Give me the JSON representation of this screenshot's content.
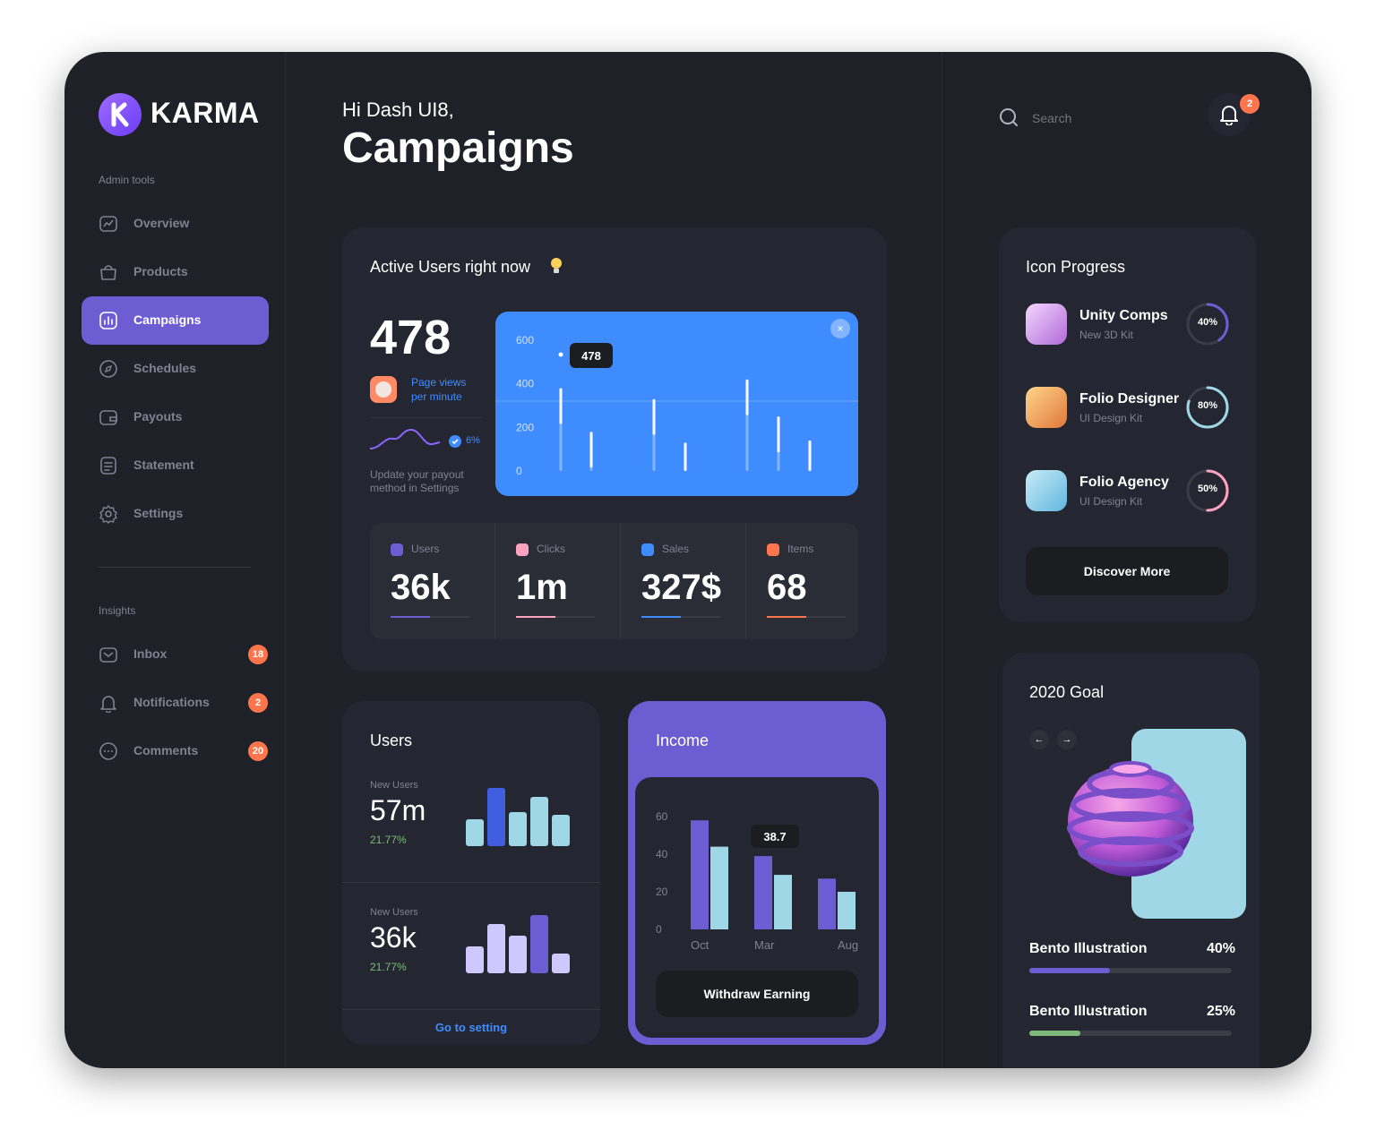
{
  "brand": {
    "name": "KARMA"
  },
  "sidebar": {
    "admin_label": "Admin tools",
    "admin_items": [
      {
        "label": "Overview",
        "icon": "chart-icon"
      },
      {
        "label": "Products",
        "icon": "bag-icon"
      },
      {
        "label": "Campaigns",
        "icon": "bars-icon",
        "active": true
      },
      {
        "label": "Schedules",
        "icon": "compass-icon"
      },
      {
        "label": "Payouts",
        "icon": "wallet-icon"
      },
      {
        "label": "Statement",
        "icon": "document-icon"
      },
      {
        "label": "Settings",
        "icon": "gear-icon"
      }
    ],
    "insights_label": "Insights",
    "insight_items": [
      {
        "label": "Inbox",
        "icon": "mail-icon",
        "badge": "18"
      },
      {
        "label": "Notifications",
        "icon": "bell-icon",
        "badge": "2"
      },
      {
        "label": "Comments",
        "icon": "chat-icon",
        "badge": "20"
      }
    ]
  },
  "header": {
    "greeting": "Hi Dash UI8,",
    "title": "Campaigns",
    "search_placeholder": "Search",
    "notification_count": "2"
  },
  "active_users": {
    "title": "Active Users right now",
    "count": "478",
    "page_views_label": "Page views per minute",
    "trend": "6%",
    "note": "Update your payout method in Settings",
    "tooltip": "478",
    "stats": [
      {
        "label": "Users",
        "value": "36k",
        "color": "#6c5dd3"
      },
      {
        "label": "Clicks",
        "value": "1m",
        "color": "#ffa2c0"
      },
      {
        "label": "Sales",
        "value": "327$",
        "color": "#3f8cff"
      },
      {
        "label": "Items",
        "value": "68",
        "color": "#ff754c"
      }
    ]
  },
  "users_card": {
    "title": "Users",
    "rows": [
      {
        "label": "New Users",
        "value": "57m",
        "change": "21.77%"
      },
      {
        "label": "New Users",
        "value": "36k",
        "change": "21.77%"
      }
    ],
    "link": "Go to setting"
  },
  "income_card": {
    "title": "Income",
    "tooltip": "38.7",
    "button": "Withdraw Earning"
  },
  "icon_progress": {
    "title": "Icon Progress",
    "items": [
      {
        "name": "Unity Comps",
        "sub": "New 3D Kit",
        "percent": "40%",
        "value": 40,
        "color": "#6c5dd3"
      },
      {
        "name": "Folio Designer",
        "sub": "UI Design Kit",
        "percent": "80%",
        "value": 80,
        "color": "#a0d7e7"
      },
      {
        "name": "Folio Agency",
        "sub": "UI Design Kit",
        "percent": "50%",
        "value": 50,
        "color": "#ffa2c0"
      }
    ],
    "button": "Discover More"
  },
  "goal_card": {
    "title": "2020 Goal",
    "items": [
      {
        "label": "Bento Illustration",
        "percent": "40%",
        "value": 40,
        "color": "#6c5dd3"
      },
      {
        "label": "Bento Illustration",
        "percent": "25%",
        "value": 25,
        "color": "#7fba7a"
      }
    ]
  },
  "chart_data": [
    {
      "type": "bar",
      "yticks": [
        "600",
        "400",
        "200",
        "0"
      ],
      "ylim": [
        0,
        700
      ],
      "values": [
        380,
        180,
        330,
        130,
        420,
        250,
        140
      ]
    },
    {
      "type": "bar",
      "categories": [
        "Oct",
        "Mar",
        "Aug"
      ],
      "yticks": [
        "60",
        "40",
        "20",
        "0"
      ],
      "ylim": [
        0,
        60
      ],
      "series": [
        {
          "values": [
            58,
            39,
            27
          ]
        },
        {
          "values": [
            44,
            29,
            20
          ]
        }
      ]
    },
    {
      "type": "bar",
      "values": [
        30,
        65,
        38,
        55,
        35
      ]
    },
    {
      "type": "bar",
      "values": [
        30,
        55,
        42,
        65,
        22
      ]
    }
  ]
}
